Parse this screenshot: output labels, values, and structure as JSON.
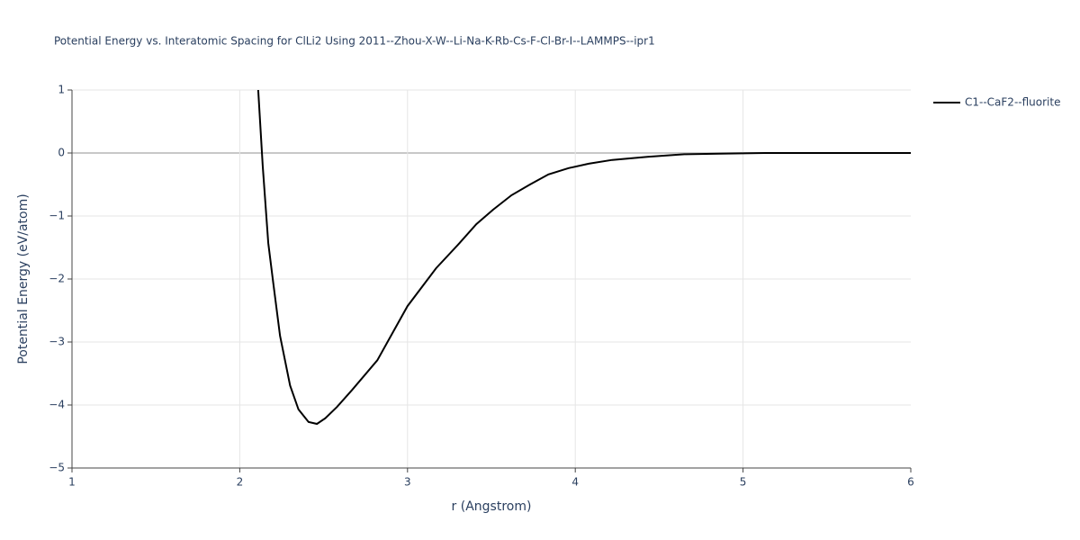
{
  "chart_data": {
    "type": "line",
    "title": "Potential Energy vs. Interatomic Spacing for ClLi2 Using 2011--Zhou-X-W--Li-Na-K-Rb-Cs-F-Cl-Br-I--LAMMPS--ipr1",
    "x_label": "r (Angstrom)",
    "y_label": "Potential Energy (eV/atom)",
    "x": [
      2.11,
      2.137,
      2.17,
      2.2,
      2.24,
      2.3,
      2.35,
      2.41,
      2.46,
      2.51,
      2.58,
      2.67,
      2.82,
      3.0,
      3.17,
      3.31,
      3.41,
      3.51,
      3.62,
      3.73,
      3.84,
      3.96,
      4.08,
      4.22,
      4.43,
      4.65,
      4.86,
      5.13,
      6.0
    ],
    "series": [
      {
        "name": "C1--CaF2--fluorite",
        "color": "#000000",
        "values": [
          1.0,
          -0.21,
          -1.43,
          -2.07,
          -2.9,
          -3.69,
          -4.07,
          -4.27,
          -4.3,
          -4.21,
          -4.03,
          -3.76,
          -3.29,
          -2.43,
          -1.83,
          -1.43,
          -1.13,
          -0.9,
          -0.67,
          -0.5,
          -0.34,
          -0.24,
          -0.17,
          -0.11,
          -0.06,
          -0.02,
          -0.01,
          0.0,
          0.0
        ]
      }
    ],
    "xlim": [
      1,
      6
    ],
    "xticks": [
      1,
      2,
      3,
      4,
      5,
      6
    ],
    "ylim": [
      -5,
      1
    ],
    "yticks": [
      {
        "value": -5,
        "label": "−5"
      },
      {
        "value": -4,
        "label": "−4"
      },
      {
        "value": -3,
        "label": "−3"
      },
      {
        "value": -2,
        "label": "−2"
      },
      {
        "value": -1,
        "label": "−1"
      },
      0,
      1
    ],
    "grid": true,
    "legend": "top-right"
  }
}
